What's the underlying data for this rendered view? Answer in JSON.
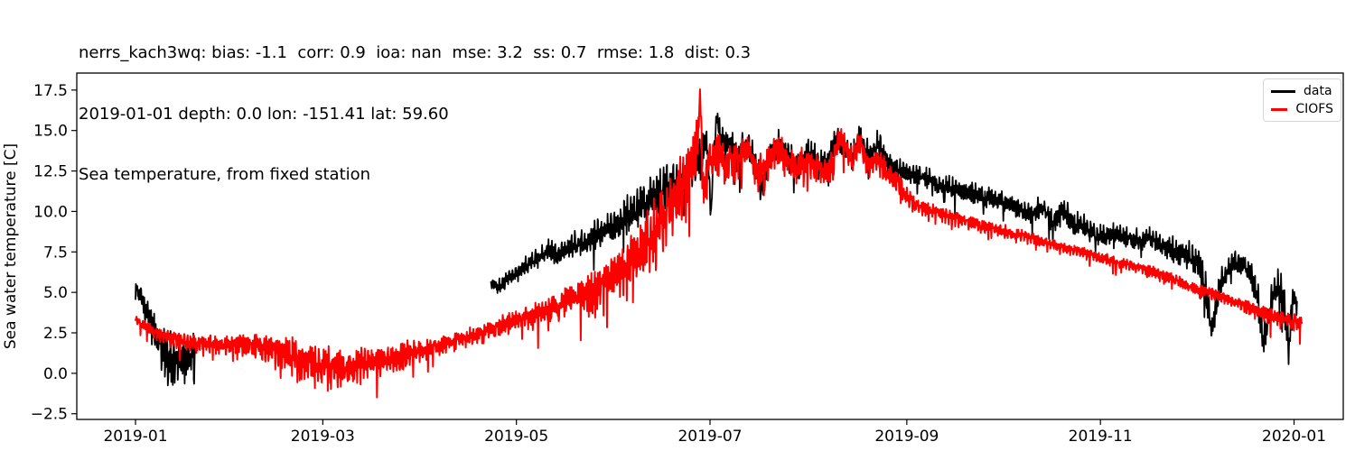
{
  "figure": {
    "background": "#ffffff",
    "axes_edge_color": "#000000"
  },
  "chart_data": {
    "type": "line",
    "title_lines": [
      "nerrs_kach3wq: bias: -1.1  corr: 0.9  ioa: nan  mse: 3.2  ss: 0.7  rmse: 1.8  dist: 0.3",
      "2019-01-01 depth: 0.0 lon: -151.41 lat: 59.60",
      "Sea temperature, from fixed station"
    ],
    "ylabel": "Sea water temperature [C]",
    "xlabel": "",
    "x_unit": "days since 2019-01-01",
    "grid": false,
    "xlim_days": [
      -18.5,
      380.5
    ],
    "ylim": [
      -2.85,
      18.55
    ],
    "x_ticks": [
      {
        "day": 0,
        "label": "2019-01"
      },
      {
        "day": 59,
        "label": "2019-03"
      },
      {
        "day": 120,
        "label": "2019-05"
      },
      {
        "day": 181,
        "label": "2019-07"
      },
      {
        "day": 243,
        "label": "2019-09"
      },
      {
        "day": 304,
        "label": "2019-11"
      },
      {
        "day": 365,
        "label": "2020-01"
      }
    ],
    "y_ticks": [
      -2.5,
      0.0,
      2.5,
      5.0,
      7.5,
      10.0,
      12.5,
      15.0,
      17.5
    ],
    "legend": {
      "position": "upper right",
      "entries": [
        {
          "label": "data",
          "color": "#000000"
        },
        {
          "label": "CIOFS",
          "color": "#ff0000"
        }
      ]
    },
    "series": [
      {
        "name": "data",
        "color": "#000000",
        "line_width": 1.8,
        "segments": [
          {
            "spike_prob": 0.04,
            "floor": -0.75,
            "cap": 5.85,
            "anchors": [
              [
                0,
                5.1,
                0.6
              ],
              [
                1.5,
                4.9,
                0.7
              ],
              [
                3,
                4.1,
                0.8
              ],
              [
                5,
                3.1,
                1.0
              ],
              [
                7,
                2.0,
                1.2
              ],
              [
                9,
                1.3,
                1.4
              ],
              [
                11,
                1.0,
                1.5
              ],
              [
                13,
                1.0,
                1.5
              ],
              [
                15,
                1.0,
                1.5
              ],
              [
                17,
                1.1,
                1.4
              ],
              [
                18.8,
                1.4,
                1.0
              ]
            ]
          },
          {
            "spike_prob": 0.03,
            "floor": 0.3,
            "cap": 16.45,
            "anchors": [
              [
                112,
                5.6,
                0.3
              ],
              [
                115,
                5.4,
                0.35
              ],
              [
                118,
                6.0,
                0.4
              ],
              [
                121,
                6.4,
                0.45
              ],
              [
                124,
                6.8,
                0.5
              ],
              [
                127,
                7.1,
                0.55
              ],
              [
                130,
                7.6,
                0.6
              ],
              [
                133,
                7.3,
                0.6
              ],
              [
                136,
                7.7,
                0.65
              ],
              [
                139,
                8.0,
                0.7
              ],
              [
                142,
                8.2,
                0.75
              ],
              [
                145,
                8.5,
                0.8
              ],
              [
                148,
                8.8,
                0.85
              ],
              [
                151,
                9.1,
                0.9
              ],
              [
                154,
                9.5,
                1.0
              ],
              [
                157,
                9.9,
                1.1
              ],
              [
                160,
                10.4,
                1.2
              ],
              [
                163,
                10.9,
                1.2
              ],
              [
                166,
                11.3,
                1.2
              ],
              [
                169,
                11.6,
                1.2
              ],
              [
                172,
                12.0,
                1.2
              ],
              [
                175,
                12.3,
                1.2
              ],
              [
                178,
                13.1,
                1.2
              ],
              [
                180,
                14.6,
                0.9
              ],
              [
                181.3,
                9.8,
                0.6
              ],
              [
                182.2,
                14.0,
                0.7
              ],
              [
                183.2,
                15.9,
                0.5
              ],
              [
                184.5,
                14.5,
                0.8
              ],
              [
                186,
                14.2,
                0.8
              ],
              [
                188,
                13.8,
                0.9
              ],
              [
                190,
                13.3,
                1.0
              ],
              [
                193,
                14.2,
                0.9
              ],
              [
                196,
                12.3,
                1.0
              ],
              [
                198,
                11.7,
                0.9
              ],
              [
                200,
                13.5,
                0.9
              ],
              [
                203,
                14.1,
                0.8
              ],
              [
                206,
                13.3,
                0.9
              ],
              [
                209,
                12.7,
                0.9
              ],
              [
                212,
                13.7,
                0.8
              ],
              [
                215,
                12.9,
                0.8
              ],
              [
                218,
                13.2,
                0.8
              ],
              [
                221,
                14.7,
                0.7
              ],
              [
                223,
                13.9,
                0.8
              ],
              [
                226,
                13.2,
                0.8
              ],
              [
                228,
                14.9,
                0.6
              ],
              [
                231,
                13.4,
                0.8
              ],
              [
                234,
                14.3,
                0.7
              ],
              [
                237,
                12.9,
                0.7
              ],
              [
                240,
                12.6,
                0.6
              ],
              [
                243,
                12.4,
                0.6
              ],
              [
                246,
                12.2,
                0.6
              ],
              [
                250,
                12.0,
                0.6
              ],
              [
                254,
                11.6,
                0.6
              ],
              [
                258,
                11.4,
                0.6
              ],
              [
                262,
                11.3,
                0.6
              ],
              [
                266,
                11.0,
                0.6
              ],
              [
                270,
                10.8,
                0.6
              ],
              [
                274,
                10.5,
                0.6
              ],
              [
                278,
                10.2,
                0.6
              ],
              [
                282,
                9.9,
                0.6
              ],
              [
                286,
                10.2,
                0.6
              ],
              [
                289,
                9.3,
                0.8
              ],
              [
                292,
                10.2,
                0.6
              ],
              [
                296,
                9.2,
                0.7
              ],
              [
                300,
                8.9,
                0.6
              ],
              [
                304,
                8.4,
                0.7
              ],
              [
                308,
                8.6,
                0.6
              ],
              [
                312,
                8.4,
                0.6
              ],
              [
                316,
                8.2,
                0.6
              ],
              [
                320,
                8.4,
                0.6
              ],
              [
                324,
                7.9,
                0.7
              ],
              [
                328,
                7.5,
                0.7
              ],
              [
                332,
                7.2,
                0.8
              ],
              [
                335,
                6.8,
                0.9
              ],
              [
                337,
                5.4,
                1.0
              ],
              [
                339,
                2.4,
                1.0
              ],
              [
                341,
                4.9,
                0.9
              ],
              [
                343.5,
                6.2,
                0.7
              ],
              [
                346,
                6.8,
                0.6
              ],
              [
                349,
                6.7,
                0.6
              ],
              [
                351,
                6.3,
                0.7
              ],
              [
                353,
                5.2,
                0.9
              ],
              [
                355.5,
                2.0,
                1.2
              ],
              [
                357.5,
                4.2,
                1.0
              ],
              [
                359.5,
                5.5,
                0.8
              ],
              [
                361.5,
                4.8,
                1.0
              ],
              [
                363.3,
                1.8,
                1.2
              ],
              [
                364.5,
                4.6,
                0.8
              ],
              [
                366,
                4.3,
                0.7
              ]
            ]
          }
        ]
      },
      {
        "name": "CIOFS",
        "color": "#ff0000",
        "line_width": 2.0,
        "segments": [
          {
            "spike_prob": 0.05,
            "floor": -2.0,
            "cap": 17.62,
            "anchors": [
              [
                0,
                3.4,
                0.25
              ],
              [
                2,
                3.0,
                0.3
              ],
              [
                4,
                2.8,
                0.35
              ],
              [
                8,
                2.3,
                0.4
              ],
              [
                12,
                2.1,
                0.5
              ],
              [
                18,
                1.9,
                0.5
              ],
              [
                25,
                1.8,
                0.55
              ],
              [
                32,
                1.8,
                0.6
              ],
              [
                40,
                1.6,
                0.8
              ],
              [
                48,
                1.2,
                0.95
              ],
              [
                54,
                0.8,
                1.1
              ],
              [
                58,
                0.5,
                1.15
              ],
              [
                62,
                0.3,
                1.15
              ],
              [
                66,
                0.4,
                1.05
              ],
              [
                72,
                0.6,
                0.95
              ],
              [
                78,
                0.85,
                0.85
              ],
              [
                84,
                1.1,
                0.75
              ],
              [
                90,
                1.4,
                0.65
              ],
              [
                97,
                1.8,
                0.55
              ],
              [
                104,
                2.2,
                0.5
              ],
              [
                112,
                2.7,
                0.5
              ],
              [
                120,
                3.3,
                0.6
              ],
              [
                128,
                3.8,
                0.7
              ],
              [
                135,
                4.4,
                0.8
              ],
              [
                142,
                5.0,
                0.95
              ],
              [
                148,
                5.6,
                1.15
              ],
              [
                154,
                6.5,
                1.35
              ],
              [
                160,
                7.8,
                1.6
              ],
              [
                165,
                9.2,
                1.8
              ],
              [
                170,
                10.8,
                1.9
              ],
              [
                174,
                12.1,
                2.0
              ],
              [
                176.5,
                13.8,
                1.6
              ],
              [
                177.9,
                17.2,
                0.6
              ],
              [
                179,
                10.8,
                0.9
              ],
              [
                180.5,
                13.4,
                1.1
              ],
              [
                182,
                13.1,
                1.2
              ],
              [
                184,
                13.9,
                1.2
              ],
              [
                186,
                12.9,
                1.1
              ],
              [
                188,
                13.3,
                1.0
              ],
              [
                190,
                13.1,
                1.0
              ],
              [
                193,
                14.0,
                0.9
              ],
              [
                196,
                12.4,
                1.1
              ],
              [
                199,
                12.9,
                1.0
              ],
              [
                202,
                14.0,
                0.9
              ],
              [
                205,
                13.2,
                1.0
              ],
              [
                208,
                12.7,
                0.95
              ],
              [
                211,
                13.1,
                0.9
              ],
              [
                214,
                12.8,
                0.85
              ],
              [
                217,
                12.3,
                0.85
              ],
              [
                220,
                13.2,
                0.9
              ],
              [
                222,
                14.8,
                0.7
              ],
              [
                224,
                14.0,
                0.8
              ],
              [
                226,
                13.0,
                0.8
              ],
              [
                228,
                14.4,
                0.7
              ],
              [
                231,
                12.7,
                0.8
              ],
              [
                234,
                13.4,
                0.8
              ],
              [
                237,
                12.2,
                0.7
              ],
              [
                240,
                11.8,
                0.6
              ],
              [
                243,
                10.9,
                0.5
              ],
              [
                246,
                10.4,
                0.45
              ],
              [
                250,
                10.1,
                0.4
              ],
              [
                255,
                9.8,
                0.4
              ],
              [
                260,
                9.5,
                0.4
              ],
              [
                265,
                9.2,
                0.35
              ],
              [
                270,
                9.0,
                0.35
              ],
              [
                275,
                8.7,
                0.35
              ],
              [
                280,
                8.5,
                0.35
              ],
              [
                285,
                8.2,
                0.3
              ],
              [
                290,
                7.9,
                0.3
              ],
              [
                295,
                7.6,
                0.3
              ],
              [
                300,
                7.4,
                0.3
              ],
              [
                305,
                7.1,
                0.3
              ],
              [
                310,
                6.8,
                0.3
              ],
              [
                315,
                6.6,
                0.3
              ],
              [
                320,
                6.3,
                0.3
              ],
              [
                325,
                6.0,
                0.3
              ],
              [
                330,
                5.6,
                0.3
              ],
              [
                335,
                5.2,
                0.3
              ],
              [
                340,
                4.9,
                0.3
              ],
              [
                345,
                4.5,
                0.3
              ],
              [
                350,
                4.2,
                0.35
              ],
              [
                355,
                3.8,
                0.4
              ],
              [
                359,
                3.5,
                0.45
              ],
              [
                363,
                3.2,
                0.5
              ],
              [
                367.5,
                3.2,
                0.55
              ]
            ]
          }
        ]
      }
    ]
  }
}
